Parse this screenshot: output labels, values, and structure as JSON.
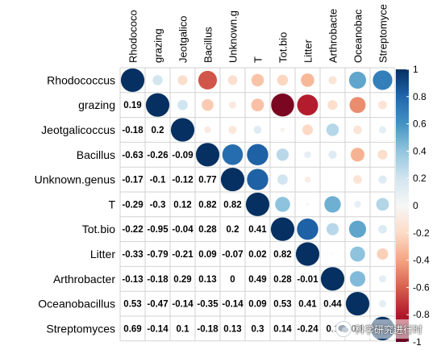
{
  "chart_data": {
    "type": "heatmap",
    "subtype": "correlation-matrix",
    "variables": [
      "Rhodococcus",
      "grazing",
      "Jeotgalicoccus",
      "Bacillus",
      "Unknown.genus",
      "T",
      "Tot.bio",
      "Litter",
      "Arthrobacter",
      "Oceanobacillus",
      "Streptomyces"
    ],
    "column_labels": [
      "Rhodococo",
      "grazing",
      "Jeotgalico",
      "Bacillus",
      "Unknown.g",
      "T",
      "Tot.bio",
      "Litter",
      "Arthrobacte",
      "Oceanobac",
      "Streptomyce"
    ],
    "lower_triangle_display": "numbers",
    "upper_triangle_display": "circles",
    "lower_values": [
      [],
      [
        0.19
      ],
      [
        -0.18,
        0.2
      ],
      [
        -0.63,
        -0.26,
        -0.09
      ],
      [
        -0.17,
        -0.1,
        -0.12,
        0.77
      ],
      [
        -0.29,
        -0.3,
        0.12,
        0.82,
        0.82
      ],
      [
        -0.22,
        -0.95,
        -0.04,
        0.28,
        0.2,
        0.41
      ],
      [
        -0.33,
        -0.79,
        -0.21,
        0.09,
        -0.07,
        0.02,
        0.82
      ],
      [
        -0.13,
        -0.18,
        0.29,
        0.13,
        0,
        0.49,
        0.28,
        -0.01
      ],
      [
        0.53,
        -0.47,
        -0.14,
        -0.35,
        -0.14,
        0.09,
        0.53,
        0.41,
        0.44
      ],
      [
        0.69,
        -0.14,
        0.1,
        -0.18,
        0.13,
        0.3,
        0.14,
        -0.24,
        0.1,
        0.1
      ]
    ],
    "colorbar": {
      "range": [
        -1,
        1
      ],
      "ticks": [
        "1",
        "0.8",
        "0.6",
        "0.4",
        "0.2",
        "0",
        "-0.2",
        "-0.4",
        "-0.6",
        "-0.8",
        "-1"
      ],
      "negative_color": "#67001f",
      "mid_color": "#f7f7f7",
      "positive_color": "#053061"
    },
    "grid": true,
    "legend_position": "right"
  },
  "watermark": {
    "text": "科学研究进行时"
  }
}
